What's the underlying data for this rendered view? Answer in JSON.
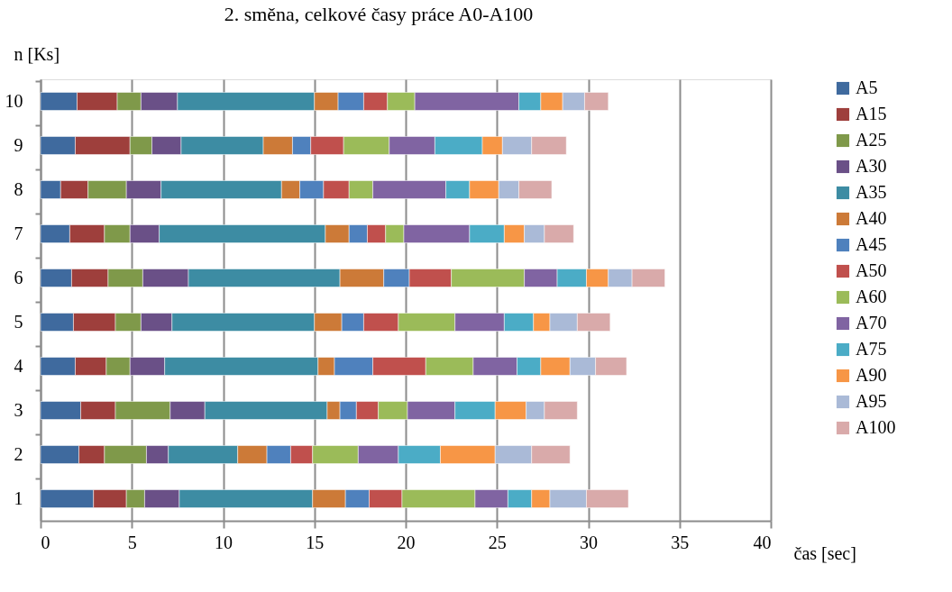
{
  "chart_data": {
    "type": "bar",
    "orientation": "horizontal",
    "stacked": true,
    "title": "2. směna, celkové časy práce A0-A100",
    "xlabel": "čas [sec]",
    "ylabel": "n [Ks]",
    "categories": [
      "10",
      "9",
      "8",
      "7",
      "6",
      "5",
      "4",
      "3",
      "2",
      "1"
    ],
    "series": [
      {
        "name": "A5",
        "color": "#3f6a9e",
        "values": [
          2.0,
          1.9,
          1.1,
          1.6,
          1.7,
          1.8,
          1.9,
          2.2,
          2.1,
          2.9
        ]
      },
      {
        "name": "A15",
        "color": "#9e3f3c",
        "values": [
          2.2,
          3.0,
          1.5,
          1.9,
          2.0,
          2.3,
          1.7,
          1.9,
          1.4,
          1.8
        ]
      },
      {
        "name": "A25",
        "color": "#7f994a",
        "values": [
          1.3,
          1.2,
          2.1,
          1.4,
          1.9,
          1.4,
          1.3,
          3.0,
          2.3,
          1.0
        ]
      },
      {
        "name": "A30",
        "color": "#6a5087",
        "values": [
          2.0,
          1.6,
          1.9,
          1.6,
          2.5,
          1.7,
          1.9,
          1.9,
          1.2,
          1.9
        ]
      },
      {
        "name": "A35",
        "color": "#3d8ca3",
        "values": [
          7.5,
          4.5,
          6.6,
          9.1,
          8.3,
          7.8,
          8.4,
          6.7,
          3.8,
          7.3
        ]
      },
      {
        "name": "A40",
        "color": "#cc7a38",
        "values": [
          1.3,
          1.6,
          1.0,
          1.3,
          2.4,
          1.5,
          0.9,
          0.7,
          1.6,
          1.8
        ]
      },
      {
        "name": "A45",
        "color": "#4f81bd",
        "values": [
          1.4,
          1.0,
          1.3,
          1.0,
          1.4,
          1.2,
          2.1,
          0.9,
          1.3,
          1.3
        ]
      },
      {
        "name": "A50",
        "color": "#c0504d",
        "values": [
          1.3,
          1.8,
          1.4,
          1.0,
          2.3,
          1.9,
          2.9,
          1.2,
          1.2,
          1.8
        ]
      },
      {
        "name": "A60",
        "color": "#9bbb59",
        "values": [
          1.5,
          2.5,
          1.3,
          1.0,
          4.0,
          3.1,
          2.6,
          1.6,
          2.5,
          4.0
        ]
      },
      {
        "name": "A70",
        "color": "#8064a2",
        "values": [
          5.7,
          2.5,
          4.0,
          3.6,
          1.8,
          2.7,
          2.4,
          2.6,
          2.2,
          1.8
        ]
      },
      {
        "name": "A75",
        "color": "#4bacc6",
        "values": [
          1.2,
          2.6,
          1.3,
          1.9,
          1.6,
          1.6,
          1.3,
          2.2,
          2.3,
          1.3
        ]
      },
      {
        "name": "A90",
        "color": "#f79646",
        "values": [
          1.2,
          1.1,
          1.6,
          1.1,
          1.2,
          0.9,
          1.6,
          1.7,
          3.0,
          1.0
        ]
      },
      {
        "name": "A95",
        "color": "#aabad7",
        "values": [
          1.2,
          1.6,
          1.1,
          1.1,
          1.3,
          1.5,
          1.4,
          1.0,
          2.0,
          2.0
        ]
      },
      {
        "name": "A100",
        "color": "#d9aaaa",
        "values": [
          1.3,
          1.9,
          1.8,
          1.6,
          1.8,
          1.8,
          1.7,
          1.8,
          2.1,
          2.3
        ]
      }
    ],
    "xlim": [
      0,
      40
    ],
    "xticks": [
      0,
      5,
      10,
      15,
      20,
      25,
      30,
      35,
      40
    ],
    "grid": "x",
    "legend": "right"
  }
}
